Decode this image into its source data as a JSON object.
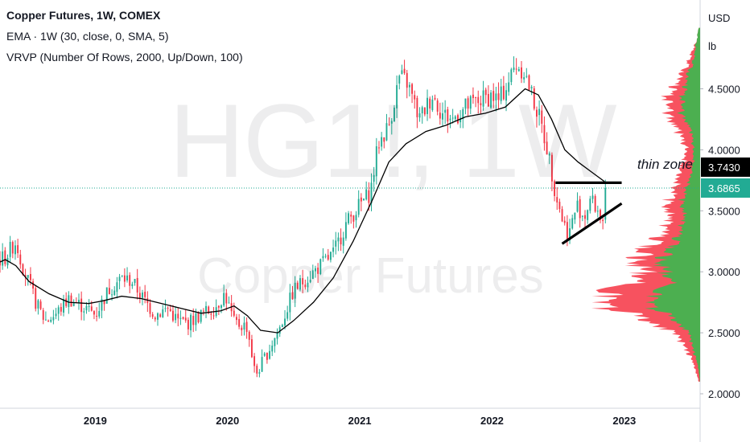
{
  "legend": {
    "title": "Copper Futures, 1W, COMEX",
    "ema": "EMA · 1W (30, close, 0, SMA, 5)",
    "vrvp": "VRVP (Number Of Rows, 2000, Up/Down, 100)"
  },
  "watermark": {
    "symbol": "HG1!, 1W",
    "name": "Copper Futures"
  },
  "annotation": {
    "thin_zone": "thin zone"
  },
  "price_badges": [
    {
      "label": "3.7430",
      "value": 3.743,
      "color": "#000000"
    },
    {
      "label": "3.6865",
      "value": 3.6865,
      "color": "#22ab94"
    }
  ],
  "colors": {
    "up": "#22ab94",
    "down": "#f23645",
    "ema": "#000000",
    "vol_up": "#4caf50",
    "vol_down": "#f7525f",
    "last_price_line": "#22ab94"
  },
  "chart_data": {
    "type": "candlestick",
    "currency": "USD",
    "unit": "lb",
    "ylim": [
      2.0,
      5.05
    ],
    "y_ticks": [
      {
        "label": "2.0000",
        "value": 2.0
      },
      {
        "label": "2.5000",
        "value": 2.5
      },
      {
        "label": "3.0000",
        "value": 3.0
      },
      {
        "label": "3.5000",
        "value": 3.5
      },
      {
        "label": "4.0000",
        "value": 4.0
      },
      {
        "label": "4.5000",
        "value": 4.5
      }
    ],
    "x_range": [
      2018.28,
      2023.5
    ],
    "x_ticks": [
      {
        "label": "2019",
        "value": 2019
      },
      {
        "label": "2020",
        "value": 2020
      },
      {
        "label": "2021",
        "value": 2021
      },
      {
        "label": "2022",
        "value": 2022
      },
      {
        "label": "2023",
        "value": 2023
      }
    ],
    "price_keypoints": [
      [
        2018.28,
        3.1
      ],
      [
        2018.32,
        3.12
      ],
      [
        2018.4,
        3.25
      ],
      [
        2018.45,
        3.05
      ],
      [
        2018.55,
        2.75
      ],
      [
        2018.62,
        2.6
      ],
      [
        2018.7,
        2.65
      ],
      [
        2018.8,
        2.78
      ],
      [
        2018.9,
        2.72
      ],
      [
        2019.0,
        2.65
      ],
      [
        2019.1,
        2.85
      ],
      [
        2019.2,
        2.95
      ],
      [
        2019.28,
        2.92
      ],
      [
        2019.35,
        2.8
      ],
      [
        2019.45,
        2.65
      ],
      [
        2019.55,
        2.7
      ],
      [
        2019.62,
        2.6
      ],
      [
        2019.7,
        2.58
      ],
      [
        2019.8,
        2.65
      ],
      [
        2019.9,
        2.7
      ],
      [
        2019.98,
        2.82
      ],
      [
        2020.05,
        2.58
      ],
      [
        2020.15,
        2.55
      ],
      [
        2020.21,
        2.15
      ],
      [
        2020.26,
        2.25
      ],
      [
        2020.33,
        2.4
      ],
      [
        2020.4,
        2.55
      ],
      [
        2020.5,
        2.85
      ],
      [
        2020.6,
        2.95
      ],
      [
        2020.7,
        3.05
      ],
      [
        2020.8,
        3.15
      ],
      [
        2020.9,
        3.4
      ],
      [
        2021.0,
        3.55
      ],
      [
        2021.08,
        3.65
      ],
      [
        2021.14,
        4.05
      ],
      [
        2021.22,
        4.2
      ],
      [
        2021.3,
        4.6
      ],
      [
        2021.36,
        4.55
      ],
      [
        2021.45,
        4.25
      ],
      [
        2021.55,
        4.45
      ],
      [
        2021.62,
        4.3
      ],
      [
        2021.7,
        4.25
      ],
      [
        2021.8,
        4.35
      ],
      [
        2021.9,
        4.4
      ],
      [
        2022.0,
        4.45
      ],
      [
        2022.05,
        4.4
      ],
      [
        2022.12,
        4.55
      ],
      [
        2022.18,
        4.7
      ],
      [
        2022.24,
        4.65
      ],
      [
        2022.3,
        4.45
      ],
      [
        2022.36,
        4.25
      ],
      [
        2022.42,
        4.0
      ],
      [
        2022.48,
        3.65
      ],
      [
        2022.54,
        3.4
      ],
      [
        2022.58,
        3.3
      ],
      [
        2022.64,
        3.55
      ],
      [
        2022.7,
        3.45
      ],
      [
        2022.74,
        3.6
      ],
      [
        2022.8,
        3.5
      ],
      [
        2022.84,
        3.42
      ],
      [
        2022.87,
        3.6865
      ]
    ],
    "ema": [
      [
        2018.28,
        3.08
      ],
      [
        2018.32,
        3.1
      ],
      [
        2018.4,
        3.05
      ],
      [
        2018.5,
        2.92
      ],
      [
        2018.65,
        2.82
      ],
      [
        2018.8,
        2.75
      ],
      [
        2018.95,
        2.74
      ],
      [
        2019.05,
        2.76
      ],
      [
        2019.2,
        2.8
      ],
      [
        2019.35,
        2.78
      ],
      [
        2019.5,
        2.74
      ],
      [
        2019.65,
        2.7
      ],
      [
        2019.8,
        2.66
      ],
      [
        2019.95,
        2.68
      ],
      [
        2020.05,
        2.72
      ],
      [
        2020.15,
        2.64
      ],
      [
        2020.25,
        2.52
      ],
      [
        2020.38,
        2.5
      ],
      [
        2020.5,
        2.6
      ],
      [
        2020.65,
        2.75
      ],
      [
        2020.8,
        2.95
      ],
      [
        2020.95,
        3.25
      ],
      [
        2021.1,
        3.6
      ],
      [
        2021.22,
        3.9
      ],
      [
        2021.35,
        4.05
      ],
      [
        2021.5,
        4.15
      ],
      [
        2021.65,
        4.2
      ],
      [
        2021.8,
        4.27
      ],
      [
        2021.95,
        4.3
      ],
      [
        2022.1,
        4.35
      ],
      [
        2022.25,
        4.5
      ],
      [
        2022.35,
        4.45
      ],
      [
        2022.45,
        4.25
      ],
      [
        2022.55,
        4.0
      ],
      [
        2022.65,
        3.9
      ],
      [
        2022.75,
        3.82
      ],
      [
        2022.85,
        3.74
      ]
    ],
    "lines": [
      {
        "name": "resistance",
        "from": [
          2022.48,
          3.73
        ],
        "to": [
          2022.98,
          3.73
        ]
      },
      {
        "name": "support",
        "from": [
          2022.53,
          3.23
        ],
        "to": [
          2022.98,
          3.56
        ]
      }
    ],
    "volume_profile_keypoints": [
      [
        2.1,
        0.01,
        0.002
      ],
      [
        2.2,
        0.03,
        0.01
      ],
      [
        2.3,
        0.06,
        0.03
      ],
      [
        2.4,
        0.1,
        0.05
      ],
      [
        2.5,
        0.16,
        0.07
      ],
      [
        2.6,
        0.34,
        0.16
      ],
      [
        2.7,
        0.55,
        0.28
      ],
      [
        2.8,
        0.6,
        0.3
      ],
      [
        2.9,
        0.45,
        0.18
      ],
      [
        3.0,
        0.35,
        0.22
      ],
      [
        3.1,
        0.4,
        0.25
      ],
      [
        3.2,
        0.34,
        0.18
      ],
      [
        3.3,
        0.25,
        0.14
      ],
      [
        3.4,
        0.22,
        0.12
      ],
      [
        3.5,
        0.2,
        0.1
      ],
      [
        3.6,
        0.2,
        0.12
      ],
      [
        3.7,
        0.15,
        0.08
      ],
      [
        3.8,
        0.12,
        0.05
      ],
      [
        3.9,
        0.1,
        0.04
      ],
      [
        4.0,
        0.08,
        0.04
      ],
      [
        4.1,
        0.12,
        0.05
      ],
      [
        4.2,
        0.16,
        0.07
      ],
      [
        4.3,
        0.2,
        0.12
      ],
      [
        4.4,
        0.22,
        0.12
      ],
      [
        4.5,
        0.18,
        0.1
      ],
      [
        4.6,
        0.12,
        0.08
      ],
      [
        4.7,
        0.08,
        0.05
      ],
      [
        4.8,
        0.05,
        0.03
      ],
      [
        4.9,
        0.02,
        0.02
      ],
      [
        5.0,
        0.01,
        0.01
      ]
    ]
  }
}
